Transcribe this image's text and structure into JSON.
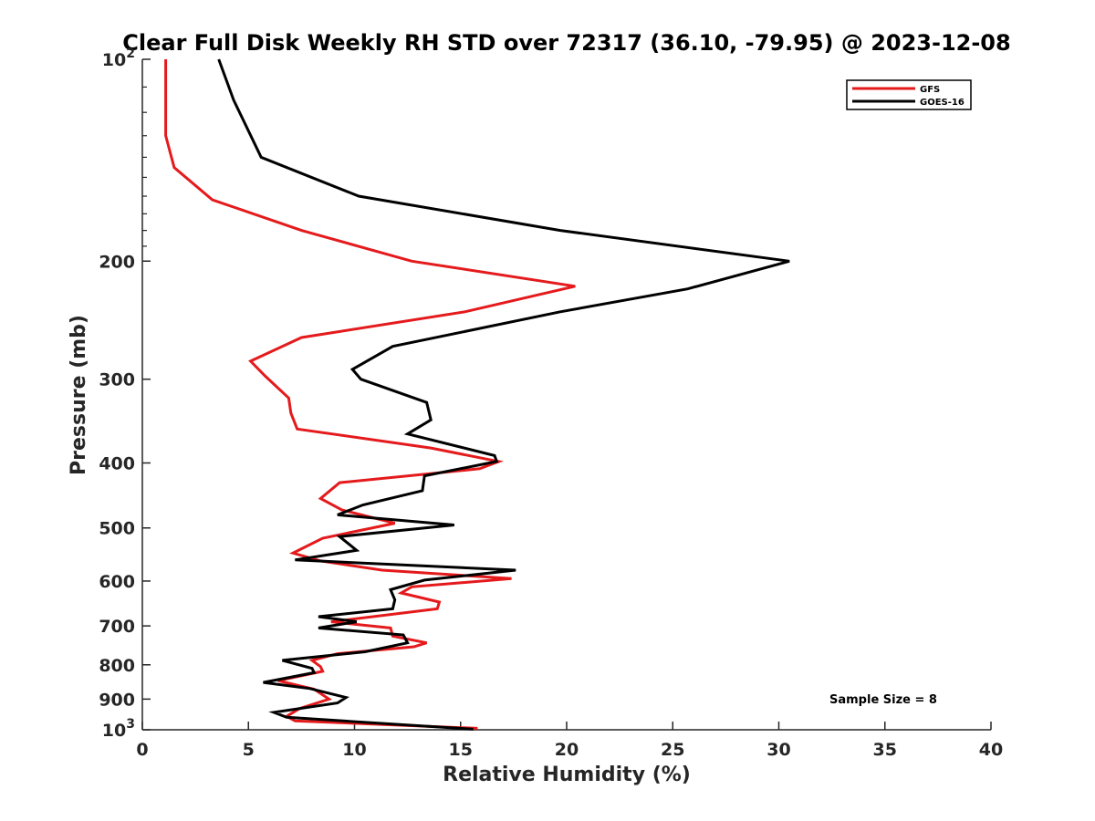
{
  "chart_data": {
    "type": "line",
    "title": "Clear Full Disk Weekly RH STD over 72317 (36.10, -79.95) @ 2023-12-08",
    "xlabel": "Relative Humidity (%)",
    "ylabel": "Pressure (mb)",
    "xlim": [
      0,
      40
    ],
    "ylim": [
      100,
      1000
    ],
    "yscale": "log",
    "y_reversed": true,
    "grid": false,
    "legend_position": "top-right",
    "x_ticks": [
      0,
      5,
      10,
      15,
      20,
      25,
      30,
      35,
      40
    ],
    "x_tick_labels": [
      "0",
      "5",
      "10",
      "15",
      "20",
      "25",
      "30",
      "35",
      "40"
    ],
    "y_ticks": [
      100,
      200,
      300,
      400,
      500,
      600,
      700,
      800,
      900,
      1000
    ],
    "y_tick_labels": [
      {
        "base": "10",
        "sup": "2"
      },
      {
        "base": "200",
        "sup": ""
      },
      {
        "base": "300",
        "sup": ""
      },
      {
        "base": "400",
        "sup": ""
      },
      {
        "base": "500",
        "sup": ""
      },
      {
        "base": "600",
        "sup": ""
      },
      {
        "base": "700",
        "sup": ""
      },
      {
        "base": "800",
        "sup": ""
      },
      {
        "base": "900",
        "sup": ""
      },
      {
        "base": "10",
        "sup": "3"
      }
    ],
    "annotation": "Sample Size = 8",
    "series": [
      {
        "name": "GFS",
        "color": "#e41a1c",
        "x": [
          1.1,
          1.1,
          1.1,
          1.5,
          3.3,
          7.5,
          12.7,
          20.4,
          15.2,
          7.5,
          5.1,
          5.8,
          6.9,
          7.0,
          7.3,
          13.6,
          16.8,
          15.9,
          9.3,
          8.4,
          9.4,
          11.9,
          8.5,
          7.1,
          8.4,
          11.3,
          17.4,
          12.7,
          12.2,
          14.0,
          13.9,
          8.9,
          11.7,
          11.8,
          13.4,
          12.8,
          9.2,
          8.0,
          8.4,
          8.5,
          6.4,
          8.1,
          8.8,
          7.4,
          6.8,
          7.2,
          15.8
        ],
        "y": [
          100,
          115,
          130,
          145,
          162,
          180,
          200,
          218,
          238,
          260,
          282,
          297,
          320,
          337,
          356,
          380,
          398,
          408,
          428,
          452,
          470,
          492,
          518,
          545,
          560,
          578,
          595,
          612,
          625,
          645,
          660,
          690,
          705,
          725,
          742,
          752,
          770,
          788,
          805,
          818,
          845,
          870,
          900,
          930,
          955,
          970,
          995
        ]
      },
      {
        "name": "GOES-16",
        "color": "#000000",
        "x": [
          3.6,
          4.3,
          5.6,
          10.2,
          19.7,
          30.5,
          25.7,
          19.7,
          11.8,
          9.9,
          10.3,
          13.4,
          13.6,
          12.5,
          16.6,
          16.7,
          13.3,
          13.2,
          10.4,
          9.2,
          14.7,
          9.3,
          10.1,
          7.2,
          17.6,
          13.3,
          11.7,
          11.9,
          11.8,
          8.3,
          10.1,
          8.3,
          12.3,
          12.5,
          10.5,
          6.6,
          8.0,
          8.1,
          5.7,
          7.9,
          9.6,
          9.2,
          6.2,
          6.8,
          15.6
        ],
        "y": [
          100,
          115,
          140,
          160,
          180,
          200,
          220,
          238,
          268,
          290,
          300,
          325,
          345,
          362,
          390,
          398,
          418,
          440,
          462,
          478,
          495,
          515,
          540,
          558,
          578,
          598,
          618,
          640,
          660,
          678,
          690,
          705,
          722,
          742,
          765,
          788,
          810,
          822,
          850,
          868,
          895,
          912,
          942,
          958,
          998
        ]
      }
    ]
  }
}
